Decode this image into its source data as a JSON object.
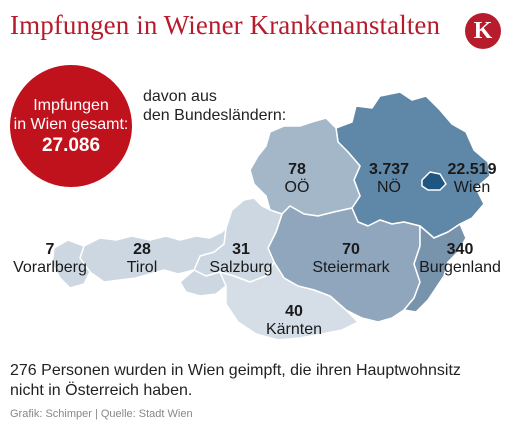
{
  "title": "Impfungen in Wiener Krankenanstalten",
  "logo_letter": "K",
  "total": {
    "label_line1": "Impfungen",
    "label_line2": "in Wien gesamt:",
    "value": "27.086"
  },
  "subhead_line1": "davon aus",
  "subhead_line2": "den Bundesländern:",
  "regions": [
    {
      "name": "Vorarlberg",
      "value": "7"
    },
    {
      "name": "Tirol",
      "value": "28"
    },
    {
      "name": "Salzburg",
      "value": "31"
    },
    {
      "name": "OÖ",
      "value": "78"
    },
    {
      "name": "NÖ",
      "value": "3.737"
    },
    {
      "name": "Wien",
      "value": "22.519"
    },
    {
      "name": "Steiermark",
      "value": "70"
    },
    {
      "name": "Burgenland",
      "value": "340"
    },
    {
      "name": "Kärnten",
      "value": "40"
    }
  ],
  "note": "276 Personen wurden in Wien geimpft, die ihren Hauptwohnsitz nicht in Österreich haben.",
  "credit": "Grafik: Schimper | Quelle: Stadt Wien",
  "colors": {
    "brand_red": "#b71c2c",
    "badge_red": "#c0121d",
    "noe": "#5f87a8",
    "wien": "#1f5581",
    "upper": "#a3b7c9",
    "steiermark": "#8fa6bc",
    "burgenland": "#7893ac",
    "west": "#ccd7e1",
    "kaernten": "#d5dee7",
    "border": "#ffffff"
  }
}
